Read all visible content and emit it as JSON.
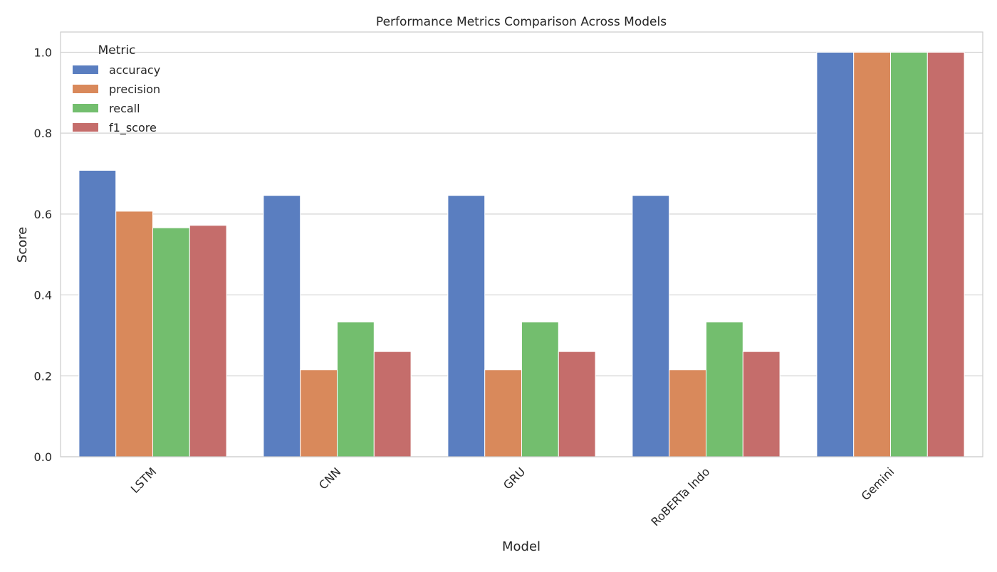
{
  "chart_data": {
    "type": "bar",
    "title": "Performance Metrics Comparison Across Models",
    "xlabel": "Model",
    "ylabel": "Score",
    "ylim": [
      0,
      1.05
    ],
    "yticks": [
      "0.0",
      "0.2",
      "0.4",
      "0.6",
      "0.8",
      "1.0"
    ],
    "grid": true,
    "categories": [
      "LSTM",
      "CNN",
      "GRU",
      "RoBERTa Indo",
      "Gemini"
    ],
    "legend": {
      "title": "Metric",
      "placement": "top-left"
    },
    "series": [
      {
        "name": "accuracy",
        "color": "#5a7ec0",
        "values": [
          0.708,
          0.646,
          0.646,
          0.646,
          1.0
        ]
      },
      {
        "name": "precision",
        "color": "#d9895b",
        "values": [
          0.607,
          0.215,
          0.215,
          0.215,
          1.0
        ]
      },
      {
        "name": "recall",
        "color": "#73be6e",
        "values": [
          0.566,
          0.333,
          0.333,
          0.333,
          1.0
        ]
      },
      {
        "name": "f1_score",
        "color": "#c56d6b",
        "values": [
          0.572,
          0.26,
          0.26,
          0.26,
          1.0
        ]
      }
    ]
  }
}
